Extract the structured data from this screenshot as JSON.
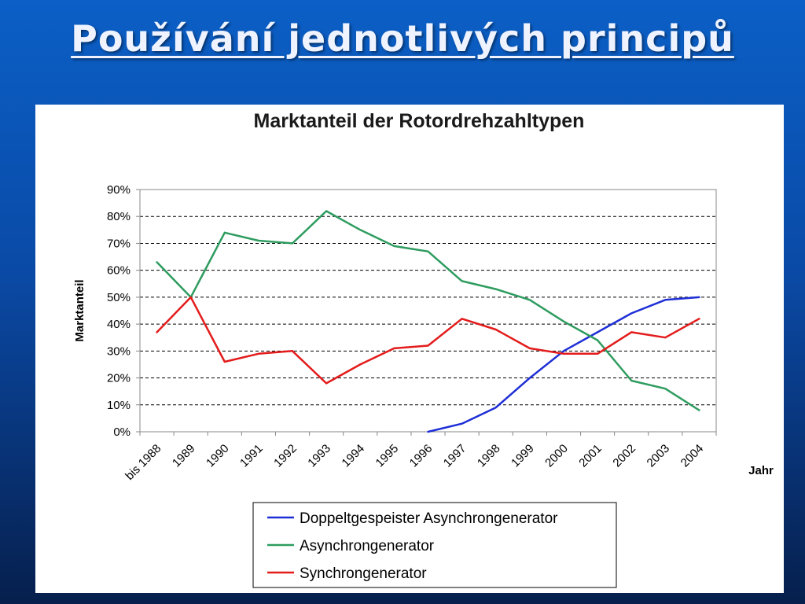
{
  "slide": {
    "title": "Používání jednotlivých principů"
  },
  "chart_data": {
    "type": "line",
    "title": "Marktanteil der Rotordrehzahltypen",
    "xlabel": "Jahr",
    "ylabel": "Marktanteil",
    "categories": [
      "bis 1988",
      "1989",
      "1990",
      "1991",
      "1992",
      "1993",
      "1994",
      "1995",
      "1996",
      "1997",
      "1998",
      "1999",
      "2000",
      "2001",
      "2002",
      "2003",
      "2004"
    ],
    "y_ticks": [
      "0%",
      "10%",
      "20%",
      "30%",
      "40%",
      "50%",
      "60%",
      "70%",
      "80%",
      "90%"
    ],
    "ylim": [
      0,
      90
    ],
    "y_unit": "%",
    "grid": "horizontal dashed",
    "legend_position": "bottom",
    "series": [
      {
        "name": "Doppeltgespeister Asynchrongenerator",
        "color": "#1f2fd6",
        "values": [
          null,
          null,
          null,
          null,
          null,
          null,
          null,
          null,
          0,
          3,
          9,
          20,
          30,
          37,
          44,
          49,
          50
        ]
      },
      {
        "name": "Asynchrongenerator",
        "color": "#2e9c5f",
        "values": [
          63,
          50,
          74,
          71,
          70,
          82,
          75,
          69,
          67,
          56,
          53,
          49,
          41,
          34,
          19,
          16,
          8
        ]
      },
      {
        "name": "Synchrongenerator",
        "color": "#e31b1b",
        "values": [
          37,
          50,
          26,
          29,
          30,
          18,
          25,
          31,
          32,
          42,
          38,
          31,
          29,
          29,
          37,
          35,
          42
        ]
      }
    ]
  }
}
